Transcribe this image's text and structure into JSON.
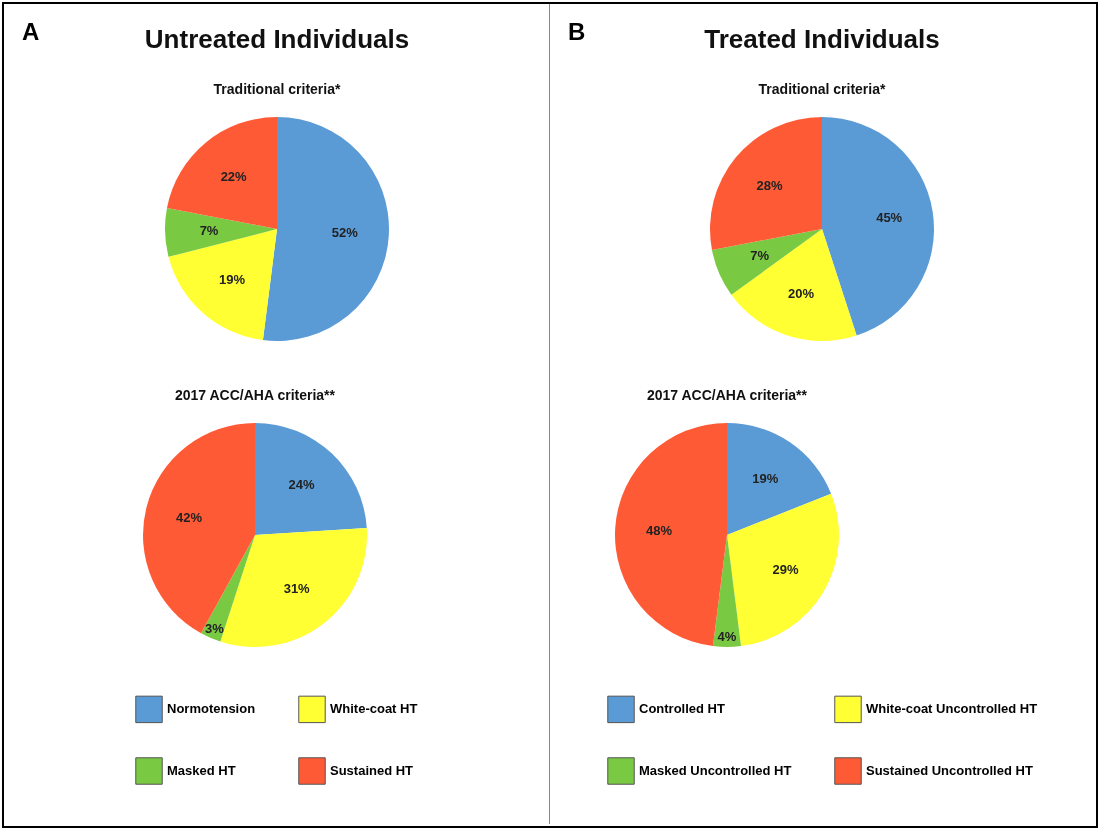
{
  "chart_data": [
    {
      "type": "pie",
      "title": "Untreated Individuals",
      "subtitle": "Traditional criteria*",
      "annotations": [
        "A"
      ],
      "categories": [
        null,
        null,
        null,
        null
      ],
      "values": [
        52,
        19,
        7,
        22
      ],
      "value_labels": [
        "52%",
        "19%",
        "7%",
        "22%"
      ],
      "colors": [
        "#5b9bd5",
        "#ffff33",
        "#7ac943",
        "#ff5a36"
      ],
      "legend": false
    },
    {
      "type": "pie",
      "title": "2017 ACC/AHA criteria**",
      "categories": [
        "Normotension",
        "White-coat HT",
        "Masked HT",
        "Sustained HT"
      ],
      "values": [
        24,
        31,
        3,
        42
      ],
      "value_labels": [
        "24%",
        "31%",
        "3%",
        "42%"
      ],
      "colors": [
        "#5b9bd5",
        "#ffff33",
        "#7ac943",
        "#ff5a36"
      ],
      "legend": "bottom"
    },
    {
      "type": "pie",
      "title": "Treated Individuals",
      "subtitle": "Traditional criteria*",
      "annotations": [
        "B"
      ],
      "categories": [
        null,
        null,
        null,
        null
      ],
      "values": [
        45,
        20,
        7,
        28
      ],
      "value_labels": [
        "45%",
        "20%",
        "7%",
        "28%"
      ],
      "colors": [
        "#5b9bd5",
        "#ffff33",
        "#7ac943",
        "#ff5a36"
      ],
      "legend": false
    },
    {
      "type": "pie",
      "title": "2017 ACC/AHA criteria**",
      "categories": [
        "Controlled HT",
        "White-coat Uncontrolled HT",
        "Masked Uncontrolled HT",
        "Sustained Uncontrolled HT"
      ],
      "values": [
        19,
        29,
        4,
        48
      ],
      "value_labels": [
        "19%",
        "29%",
        "4%",
        "48%"
      ],
      "colors": [
        "#5b9bd5",
        "#ffff33",
        "#7ac943",
        "#ff5a36"
      ],
      "legend": "bottom"
    }
  ]
}
